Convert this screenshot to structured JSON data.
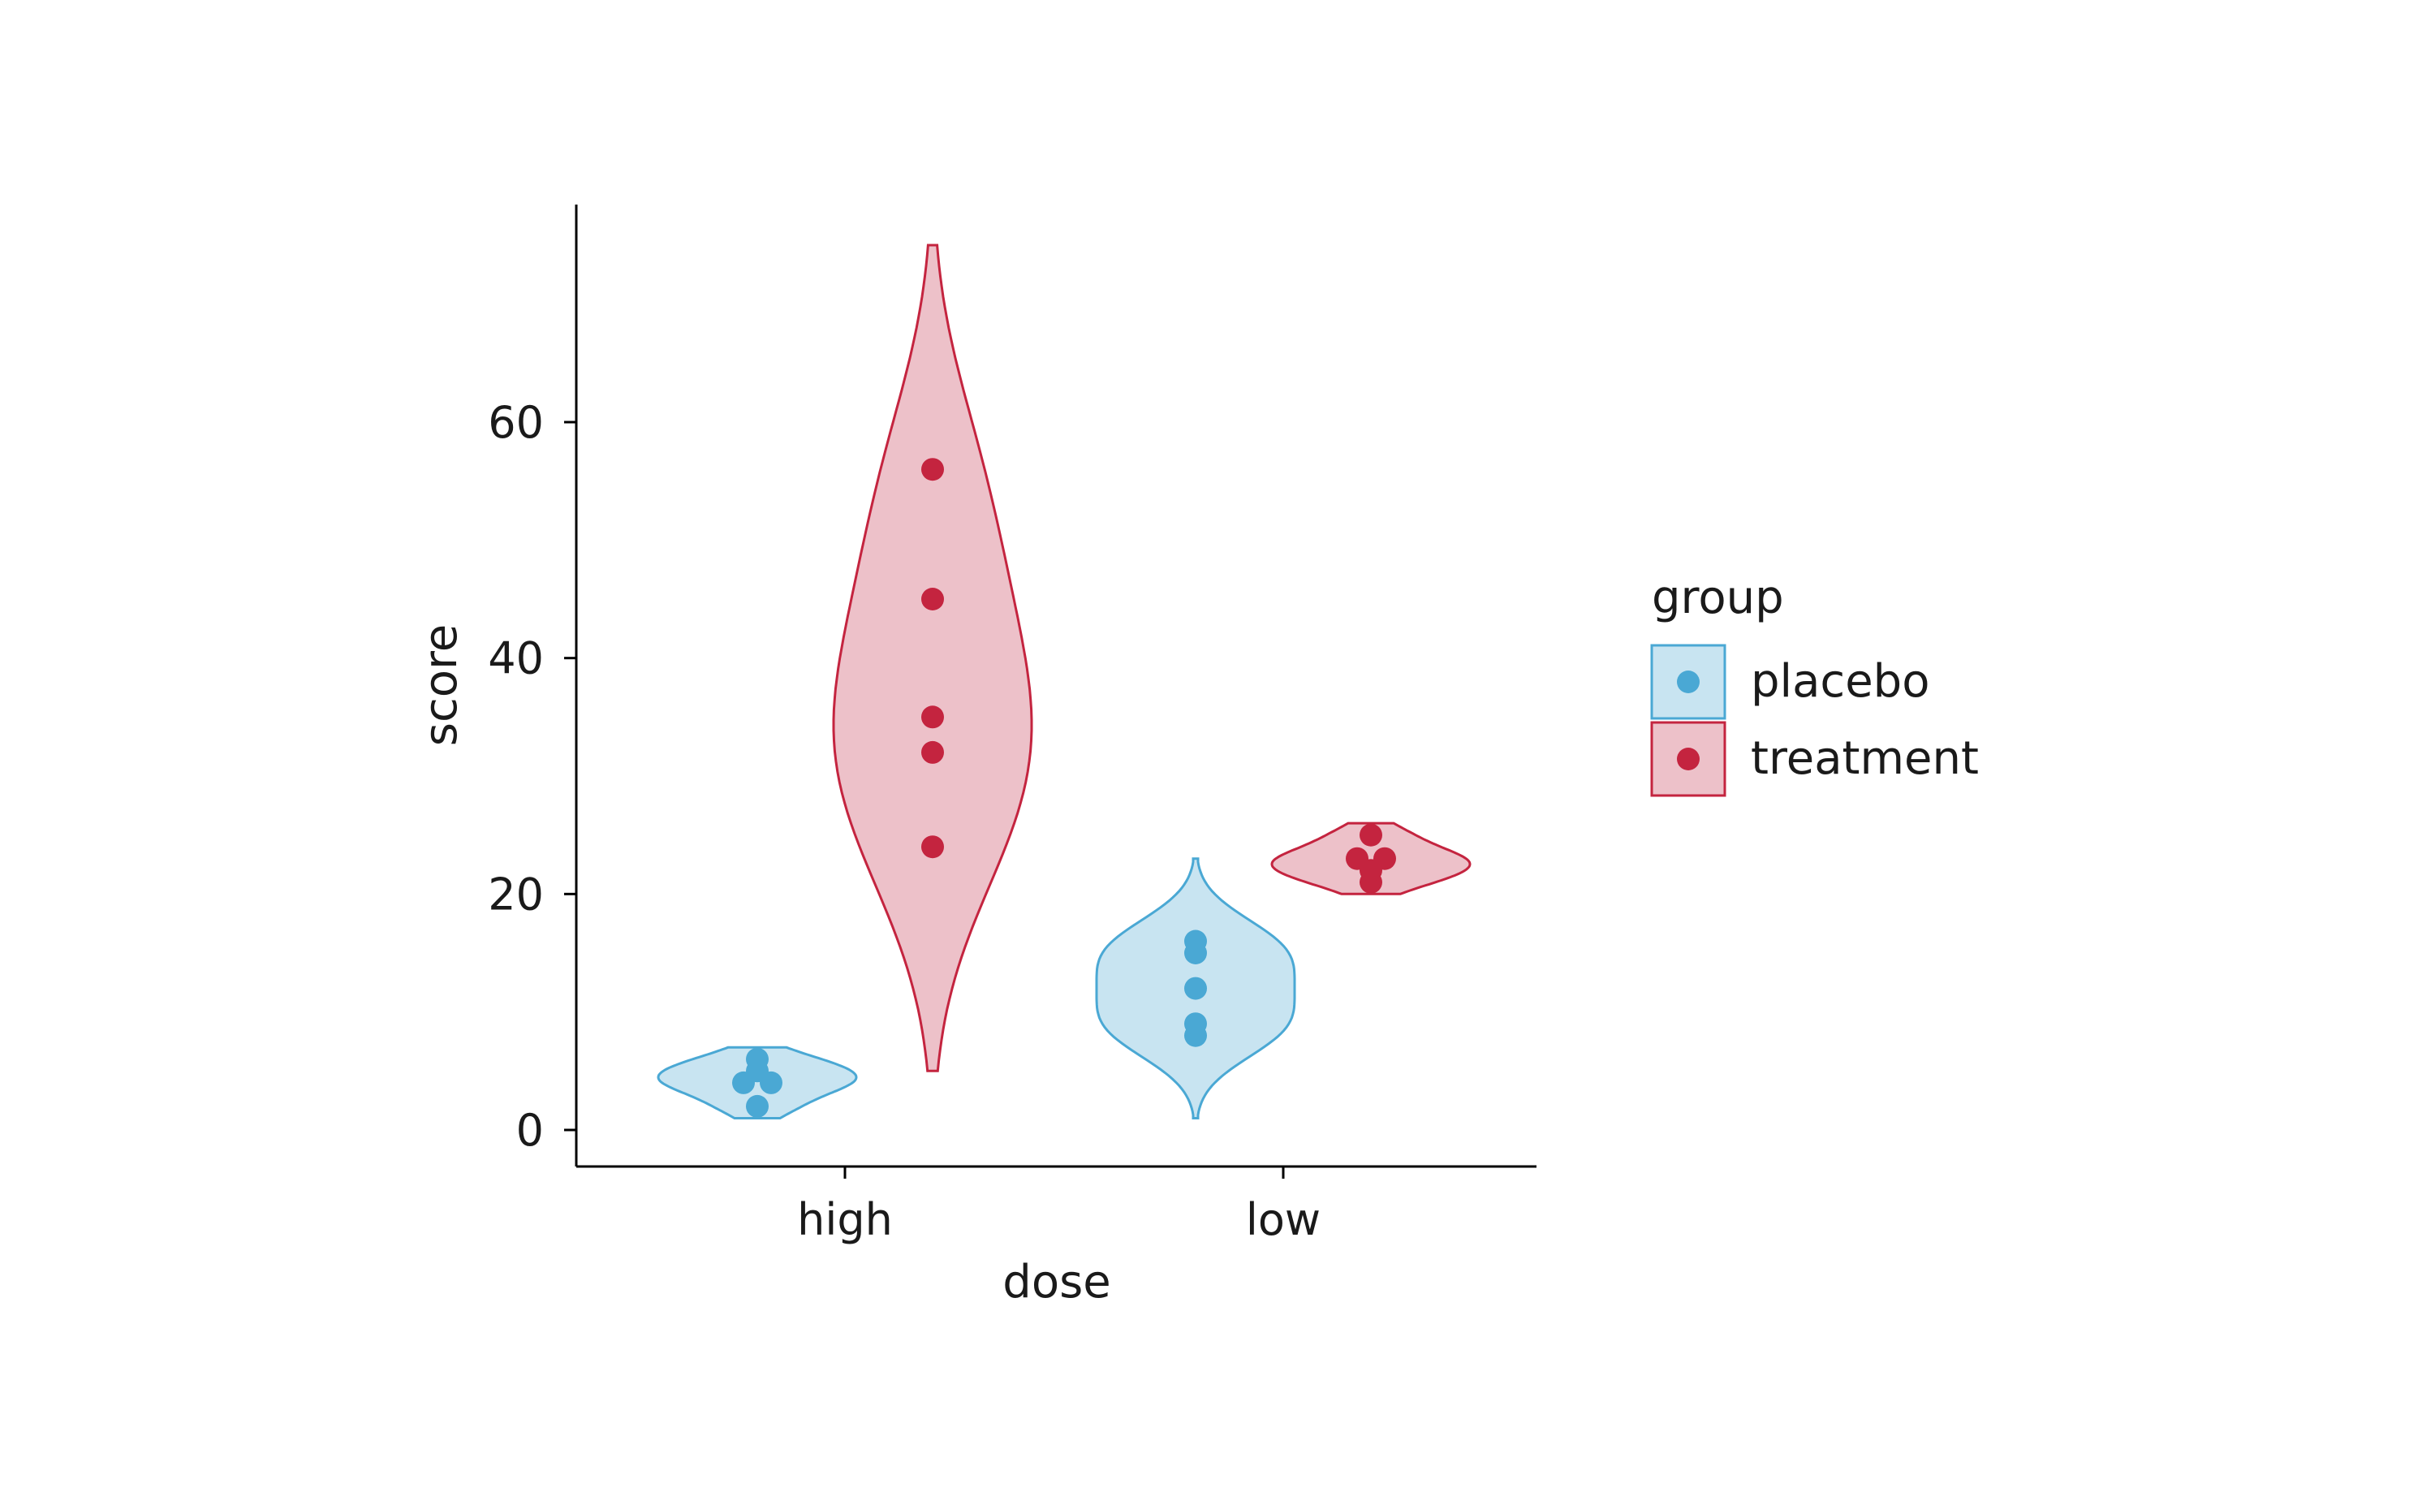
{
  "chart_data": {
    "type": "violin",
    "xlabel": "dose",
    "ylabel": "score",
    "categories": [
      "high",
      "low"
    ],
    "ylim": [
      -3,
      82
    ],
    "yticks": [
      0,
      20,
      40,
      60
    ],
    "grid": false,
    "legend": {
      "title": "group",
      "placement": "right",
      "entries": [
        "placebo",
        "treatment"
      ]
    },
    "series": [
      {
        "name": "placebo",
        "color": "#4aa8d4",
        "fill": "#c8e4f1",
        "groups": [
          {
            "category": "high",
            "points": [
              2,
              4,
              4,
              5,
              6
            ],
            "range": [
              1,
              7
            ]
          },
          {
            "category": "low",
            "points": [
              8,
              9,
              12,
              15,
              16
            ],
            "range": [
              1,
              23
            ]
          }
        ]
      },
      {
        "name": "treatment",
        "color": "#c4243f",
        "fill": "#edc1c9",
        "groups": [
          {
            "category": "high",
            "points": [
              24,
              32,
              35,
              45,
              56
            ],
            "range": [
              5,
              75
            ]
          },
          {
            "category": "low",
            "points": [
              21,
              22,
              23,
              23,
              25
            ],
            "range": [
              20,
              26
            ]
          }
        ]
      }
    ]
  }
}
